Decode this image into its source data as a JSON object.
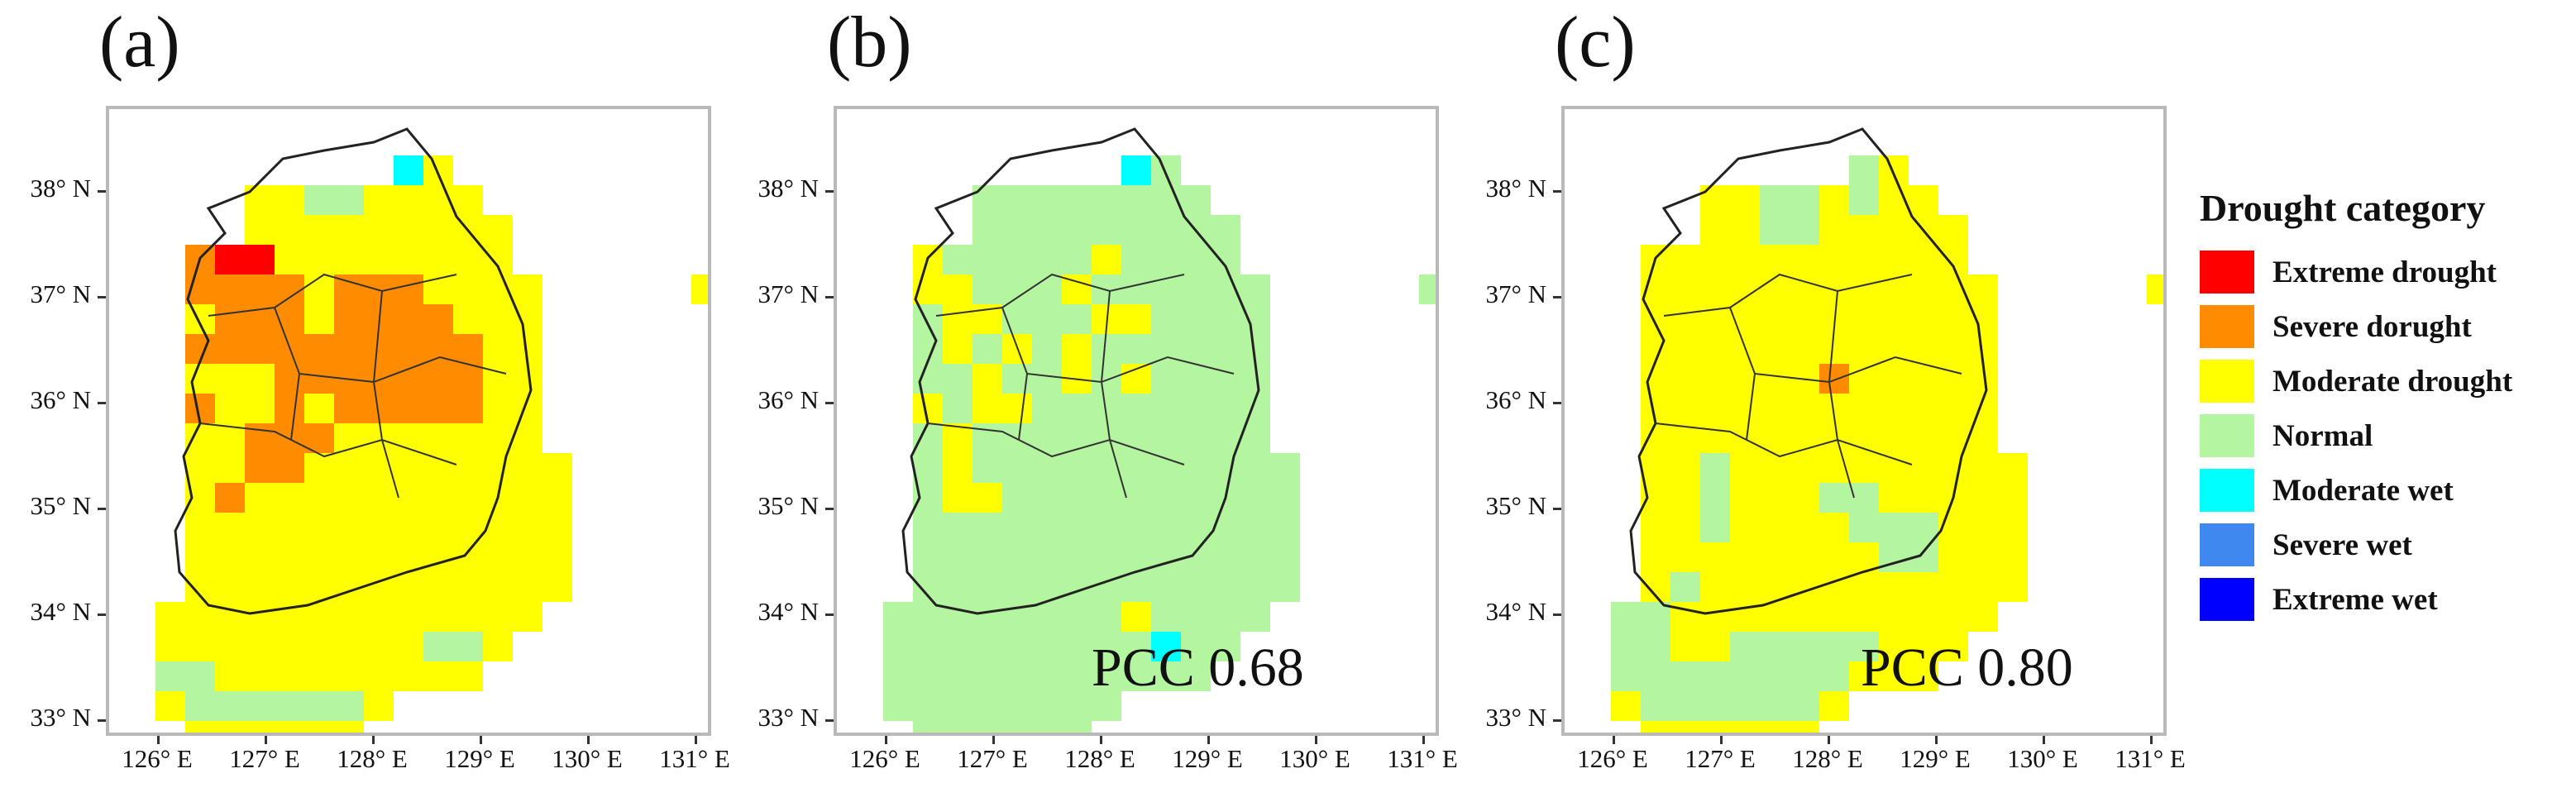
{
  "figure": {
    "panels": [
      {
        "label": "(a)",
        "pcc": ""
      },
      {
        "label": "(b)",
        "pcc": "PCC 0.68"
      },
      {
        "label": "(c)",
        "pcc": "PCC 0.80"
      }
    ],
    "y_ticks": [
      "38° N",
      "37° N",
      "36° N",
      "35° N",
      "34° N",
      "33° N"
    ],
    "x_ticks": [
      "126° E",
      "127° E",
      "128° E",
      "129° E",
      "130° E",
      "131° E"
    ],
    "legend": {
      "title": "Drought category",
      "items": [
        {
          "label": "Extreme drought",
          "color": "#ff0000"
        },
        {
          "label": "Severe dorught",
          "color": "#ff8c00"
        },
        {
          "label": "Moderate drought",
          "color": "#ffff00"
        },
        {
          "label": "Normal",
          "color": "#b4f5a0"
        },
        {
          "label": "Moderate wet",
          "color": "#00ffff"
        },
        {
          "label": "Severe wet",
          "color": "#3f88f0"
        },
        {
          "label": "Extreme wet",
          "color": "#0000ff"
        }
      ]
    }
  }
}
